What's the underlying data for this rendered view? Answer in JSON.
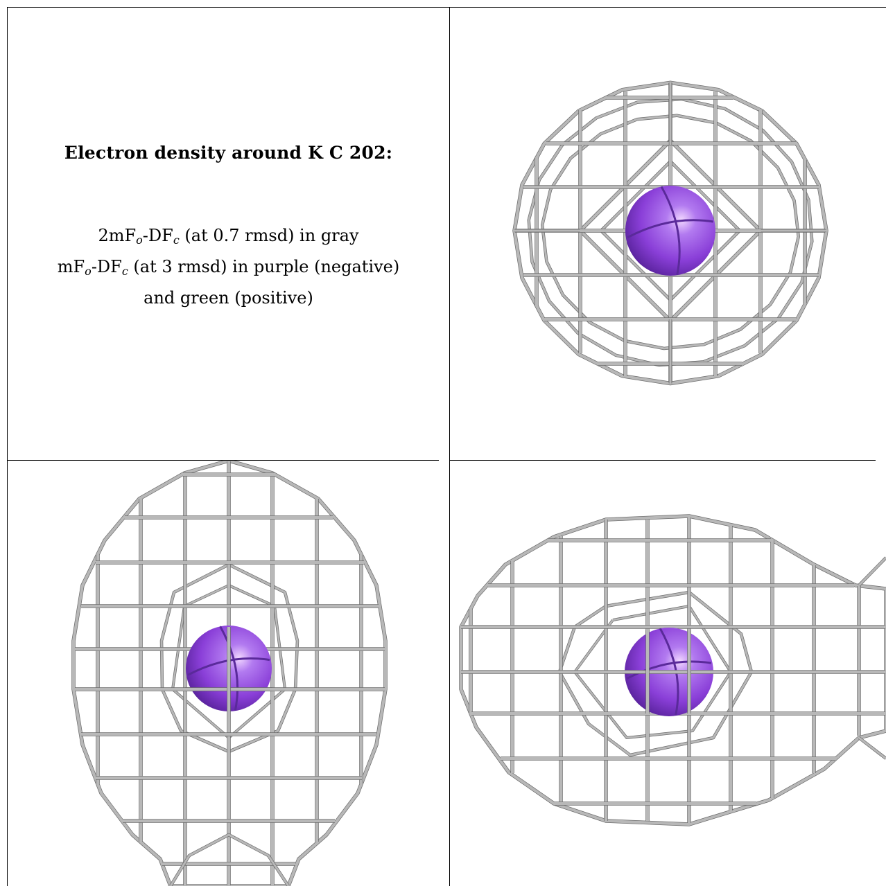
{
  "caption": {
    "title": "Electron density around K C 202:",
    "line1": {
      "a": "2mF",
      "b": "o",
      "c": "-DF",
      "d": "c",
      "e": " (at 0.7 rmsd) in gray"
    },
    "line2": {
      "a": "mF",
      "b": "o",
      "c": "-DF",
      "d": "c",
      "e": " (at 3 rmsd) in purple (negative)"
    },
    "line3": "and green (positive)"
  },
  "colors": {
    "mesh_gray": "#b8b8b8",
    "mesh_dark": "#6e6e6e",
    "mesh_light": "#dedede",
    "atom_purple": "#8a3fd8",
    "atom_highlight": "#f2d8ff",
    "atom_shadow": "#4a1a8a"
  },
  "views": [
    {
      "id": "view-top",
      "atom": "K"
    },
    {
      "id": "view-front",
      "atom": "K"
    },
    {
      "id": "view-side",
      "atom": "K"
    }
  ]
}
